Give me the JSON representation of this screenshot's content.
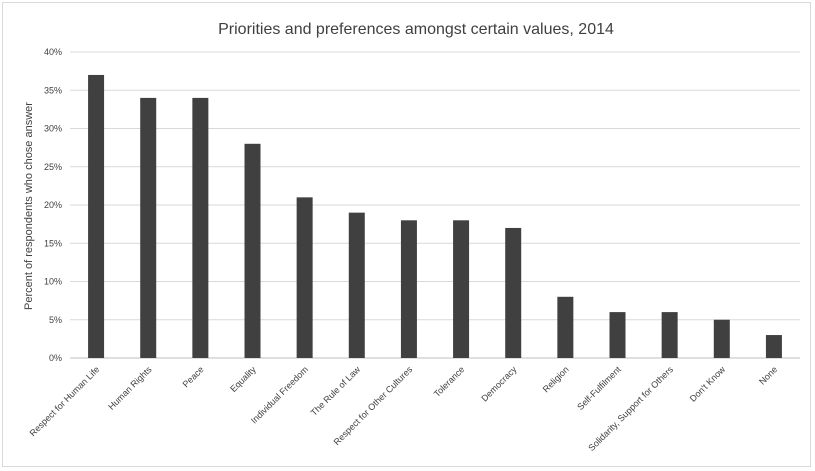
{
  "chart_data": {
    "type": "bar",
    "title": "Priorities and preferences amongst certain values, 2014",
    "ylabel": "Percent of respondents who chose answer",
    "xlabel": "",
    "categories": [
      "Respect for Human Life",
      "Human Rights",
      "Peace",
      "Equality",
      "Individual Freedom",
      "The Rule of Law",
      "Respect for Other Cultures",
      "Tolerance",
      "Democracy",
      "Religion",
      "Self-Fulfilment",
      "Solidarity, Support for Others",
      "Don't Know",
      "None"
    ],
    "values": [
      37,
      34,
      34,
      28,
      21,
      19,
      18,
      18,
      17,
      8,
      6,
      6,
      5,
      3
    ],
    "ylim": [
      0,
      40
    ],
    "yticks": [
      "0%",
      "5%",
      "10%",
      "15%",
      "20%",
      "25%",
      "30%",
      "35%",
      "40%"
    ],
    "grid": true,
    "bar_color": "#404040",
    "grid_color": "#d9d9d9"
  }
}
